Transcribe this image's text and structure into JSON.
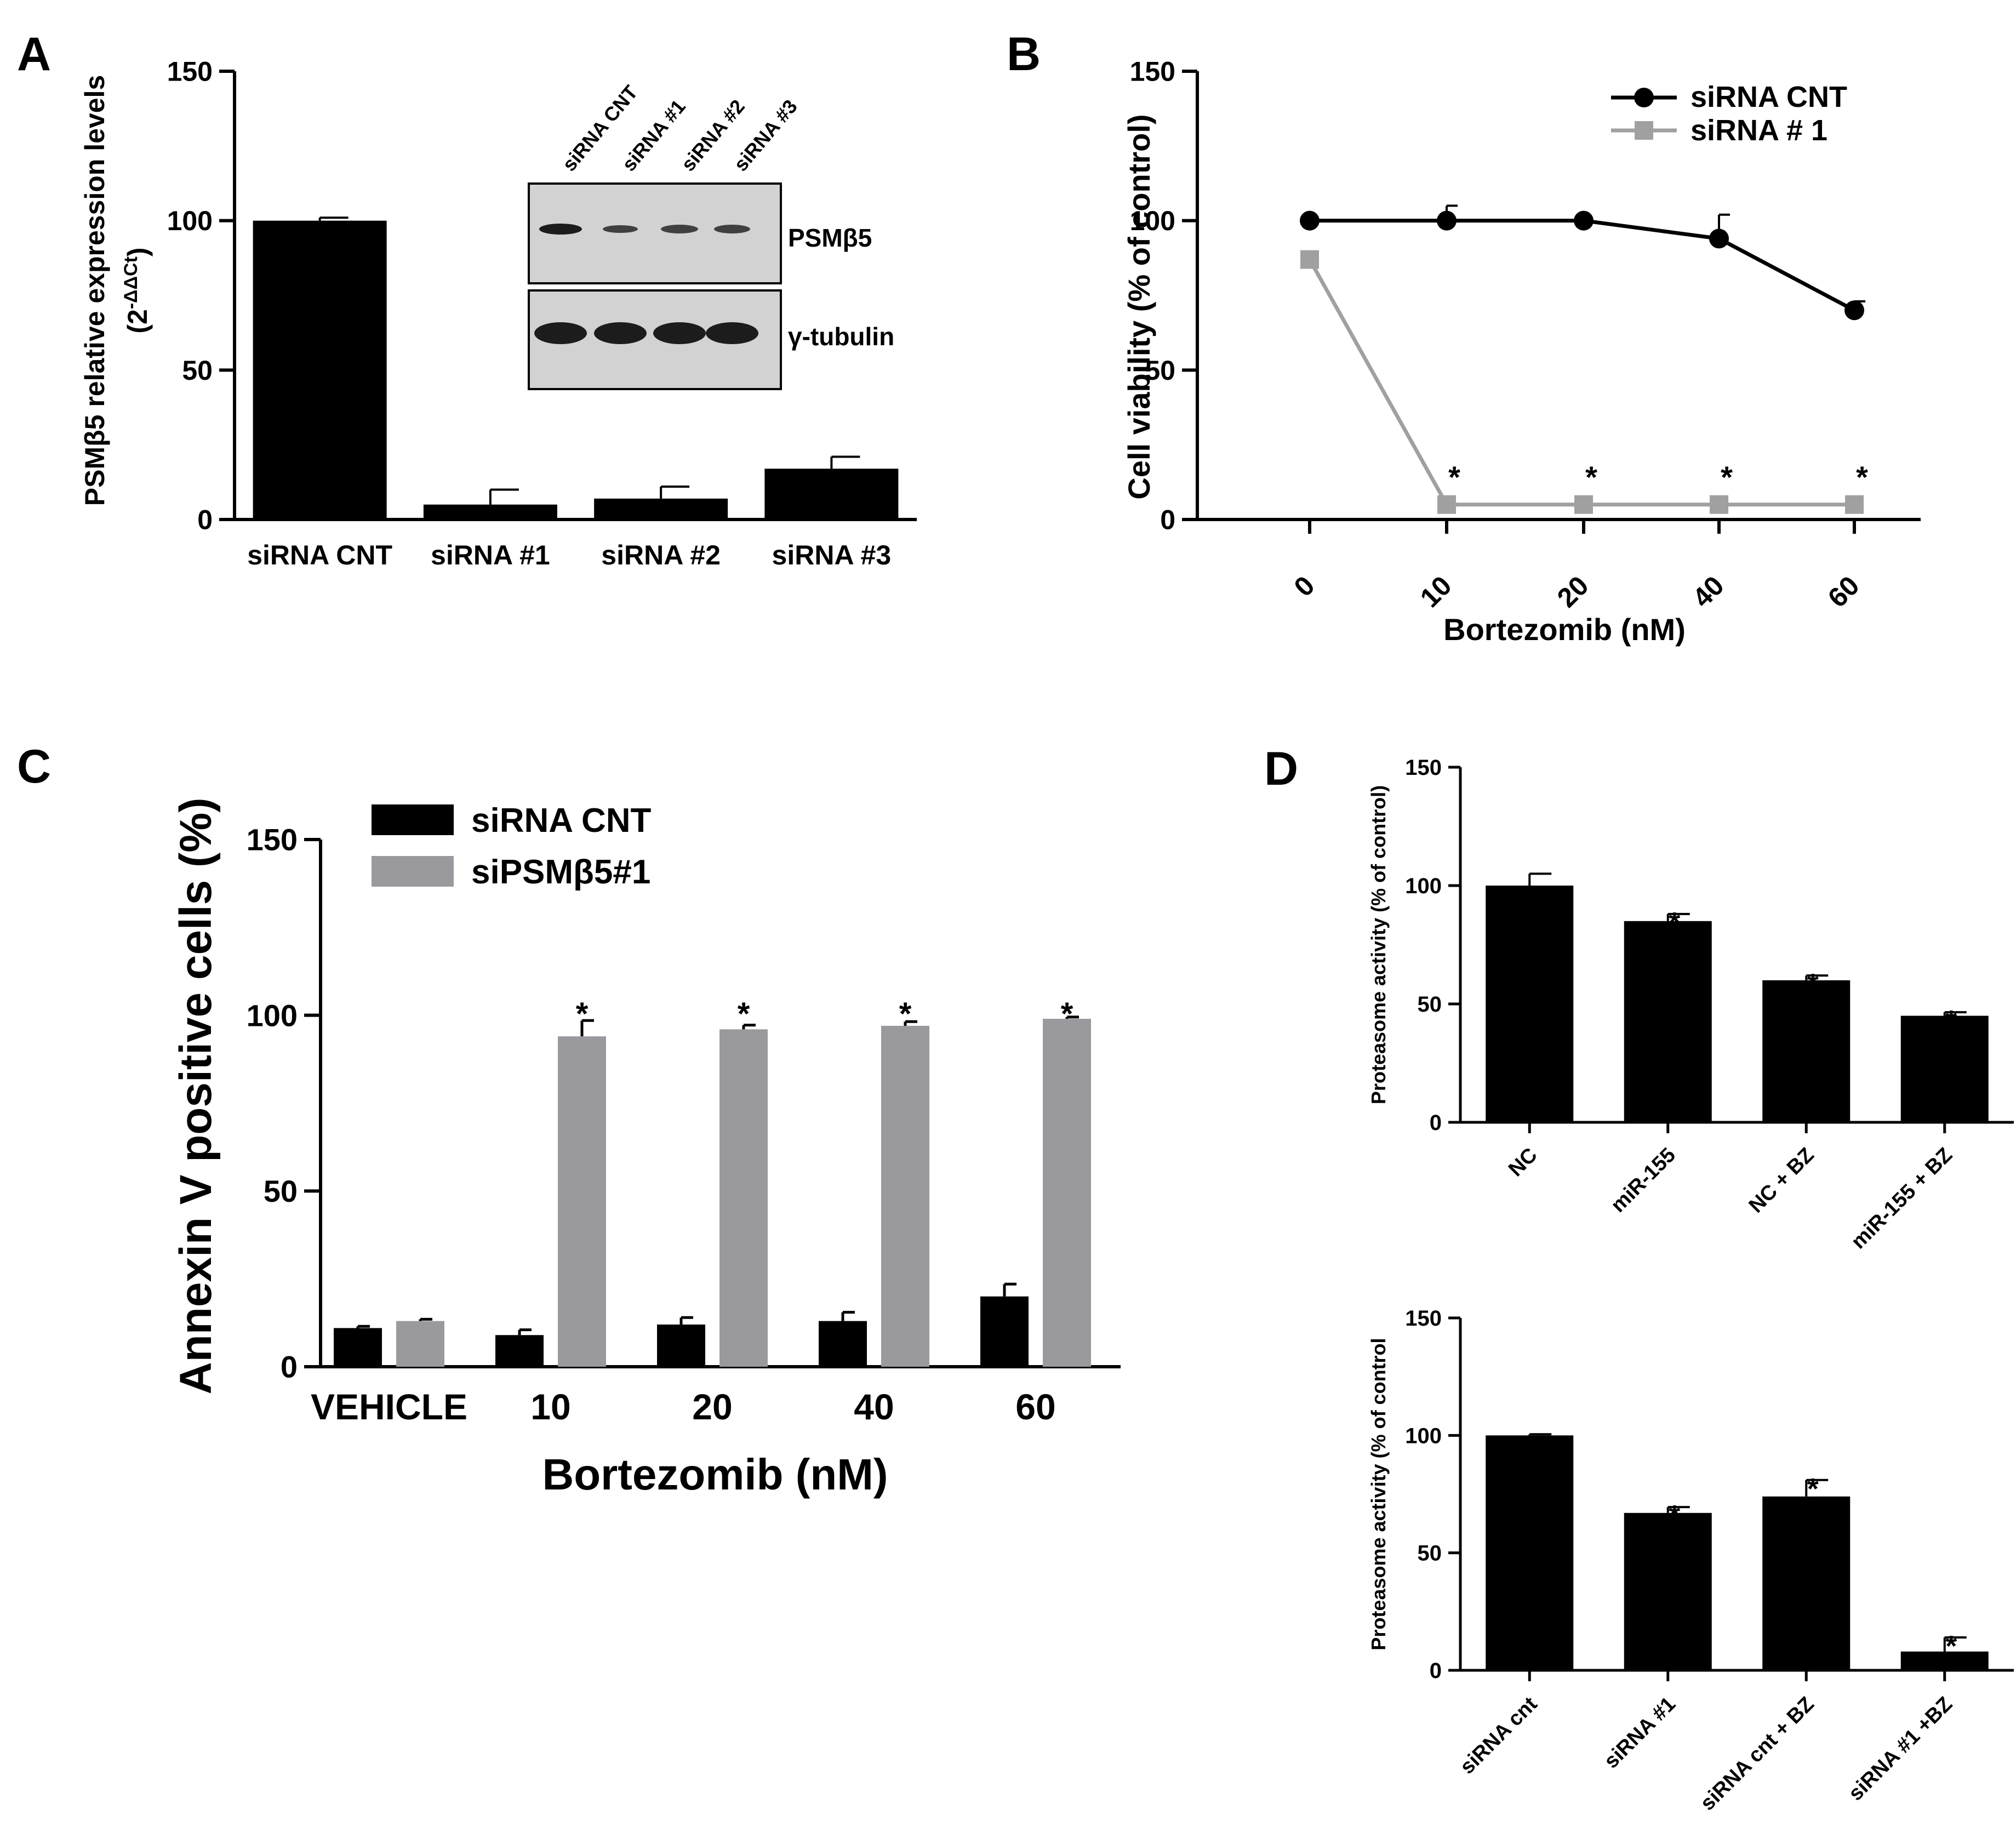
{
  "figure": {
    "panel_labels": [
      "A",
      "B",
      "C",
      "D"
    ]
  },
  "colors": {
    "black": "#000000",
    "gray": "#9a9a9e",
    "line_gray": "#a0a0a0",
    "blot_bg": "#d2d2d2",
    "band": "#1c1c1c"
  },
  "chart_data": [
    {
      "panel": "A",
      "type": "bar",
      "title": "",
      "xlabel": "",
      "ylabel": "PSMβ5 relative expression levels",
      "ylabel_line2": "(2-ΔΔCt)",
      "ylabel_line2_base": "(2",
      "ylabel_line2_sup": "-ΔΔCt",
      "ylabel_line2_end": ")",
      "ylim": [
        0,
        150
      ],
      "yticks": [
        "0",
        "50",
        "100",
        "150"
      ],
      "categories": [
        "siRNA CNT",
        "siRNA #1",
        "siRNA #2",
        "siRNA #3"
      ],
      "values": [
        100,
        5,
        7,
        17
      ],
      "errors": [
        1,
        5,
        4,
        4
      ],
      "inset": {
        "lane_labels": [
          "siRNA CNT",
          "siRNA #1",
          "siRNA #2",
          "siRNA #3"
        ],
        "row_labels": [
          "PSMβ5",
          "γ-tubulin"
        ]
      }
    },
    {
      "panel": "B",
      "type": "line",
      "title": "",
      "xlabel": "Bortezomib (nM)",
      "ylabel": "Cell viability (% of control)",
      "ylim": [
        0,
        150
      ],
      "yticks": [
        "0",
        "50",
        "100",
        "150"
      ],
      "categories": [
        "0",
        "10",
        "20",
        "40",
        "60"
      ],
      "series": [
        {
          "name": "siRNA CNT",
          "values": [
            100,
            100,
            100,
            94,
            70
          ],
          "errors": [
            0,
            5,
            0,
            8,
            3
          ],
          "marker": "circle"
        },
        {
          "name": "siRNA # 1",
          "values": [
            87,
            5,
            5,
            5,
            5
          ],
          "errors": [
            0,
            0,
            0,
            0,
            0
          ],
          "marker": "square"
        }
      ],
      "significance": [
        "",
        "*",
        "*",
        "*",
        "*"
      ],
      "legend": "top-right"
    },
    {
      "panel": "C",
      "type": "bar",
      "title": "",
      "xlabel": "Bortezomib (nM)",
      "ylabel": "Annexin V positive cells (%)",
      "ylim": [
        0,
        150
      ],
      "yticks": [
        "0",
        "50",
        "100",
        "150"
      ],
      "categories": [
        "VEHICLE",
        "10",
        "20",
        "40",
        "60"
      ],
      "series": [
        {
          "name": "siRNA CNT",
          "values": [
            11,
            9,
            12,
            13,
            20
          ],
          "errors": [
            0.5,
            1.5,
            2,
            2.5,
            3.5
          ]
        },
        {
          "name": "siPSMβ5#1",
          "values": [
            13,
            94,
            96,
            97,
            99
          ],
          "errors": [
            0.5,
            4.5,
            1.2,
            1.2,
            0.5
          ]
        }
      ],
      "significance": [
        "",
        "*",
        "*",
        "*",
        "*"
      ],
      "legend": "top-left"
    },
    {
      "panel": "D",
      "type": "bar",
      "title": "",
      "xlabel": "",
      "ylabel": "Proteasome activity (% of control)",
      "ylim": [
        0,
        150
      ],
      "yticks": [
        "0",
        "50",
        "100",
        "150"
      ],
      "categories": [
        "NC",
        "miR-155",
        "NC + BZ",
        "miR-155 + BZ"
      ],
      "values": [
        100,
        85,
        60,
        45
      ],
      "errors": [
        5,
        3,
        2,
        1.5
      ],
      "significance": [
        "",
        "*",
        "*",
        "*"
      ]
    },
    {
      "panel": "D",
      "type": "bar",
      "title": "",
      "xlabel": "",
      "ylabel": "Proteasome activity (% of control",
      "ylim": [
        0,
        150
      ],
      "yticks": [
        "0",
        "50",
        "100",
        "150"
      ],
      "categories": [
        "siRNA cnt",
        "siRNA #1",
        "siRNA cnt + BZ",
        "siRNA #1 +BZ"
      ],
      "values": [
        100,
        67,
        74,
        8
      ],
      "errors": [
        0.5,
        2.5,
        7,
        6
      ],
      "significance": [
        "",
        "*",
        "*",
        "*"
      ]
    }
  ]
}
